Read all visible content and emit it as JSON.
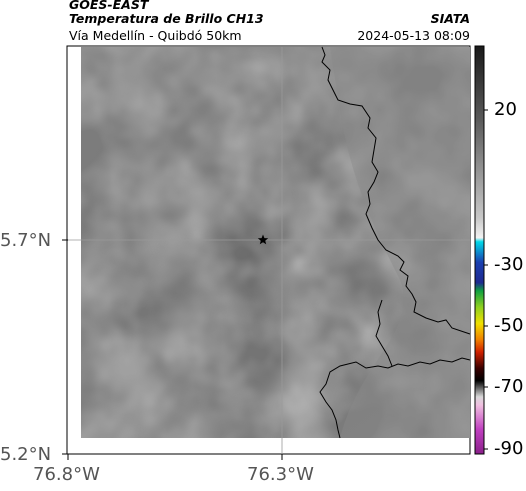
{
  "header": {
    "source": "GOES-EAST",
    "product": "Temperatura de Brillo CH13",
    "region": "Vía Medellín - Quibdó 50km",
    "agency": "SIATA",
    "datetime": "2024-05-13 08:09"
  },
  "map": {
    "lat_ticks": [
      "5.7°N",
      "5.2°N"
    ],
    "lon_ticks": [
      "76.8°W",
      "76.3°W"
    ],
    "marker_icon": "star-icon",
    "colors": {
      "field_base": "#7c7c7c",
      "field_dark": "#6a6a6a",
      "field_light": "#8e8e8e",
      "boundary": "#000000"
    }
  },
  "colorbar": {
    "tick_labels": [
      "20",
      "-30",
      "-50",
      "-70",
      "-90"
    ]
  }
}
